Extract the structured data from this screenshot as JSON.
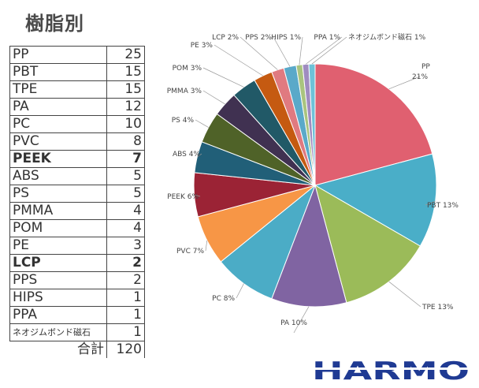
{
  "page": {
    "title": "樹脂別"
  },
  "table": {
    "rows": [
      {
        "name": "PP",
        "value": "25",
        "bold": false
      },
      {
        "name": "PBT",
        "value": "15",
        "bold": false
      },
      {
        "name": "TPE",
        "value": "15",
        "bold": false
      },
      {
        "name": "PA",
        "value": "12",
        "bold": false
      },
      {
        "name": "PC",
        "value": "10",
        "bold": false
      },
      {
        "name": "PVC",
        "value": "8",
        "bold": false
      },
      {
        "name": "PEEK",
        "value": "7",
        "bold": true
      },
      {
        "name": "ABS",
        "value": "5",
        "bold": false
      },
      {
        "name": "PS",
        "value": "5",
        "bold": false
      },
      {
        "name": "PMMA",
        "value": "4",
        "bold": false
      },
      {
        "name": "POM",
        "value": "4",
        "bold": false
      },
      {
        "name": "PE",
        "value": "3",
        "bold": false
      },
      {
        "name": "LCP",
        "value": "2",
        "bold": true
      },
      {
        "name": "PPS",
        "value": "2",
        "bold": false
      },
      {
        "name": "HIPS",
        "value": "1",
        "bold": false
      },
      {
        "name": "PPA",
        "value": "1",
        "bold": false
      },
      {
        "name": "ネオジムボンド磁石",
        "value": "1",
        "bold": false
      }
    ],
    "total_label": "合計",
    "total_value": "120"
  },
  "logo": {
    "text": "HARMO",
    "color": "#1f3a93"
  },
  "chart_data": {
    "type": "pie",
    "slices": [
      {
        "label": "PP",
        "value": 25,
        "pct": "21%",
        "color": "#e06070"
      },
      {
        "label": "PBT",
        "value": 15,
        "pct": "13%",
        "color": "#4aaec8"
      },
      {
        "label": "TPE",
        "value": 15,
        "pct": "13%",
        "color": "#9bbb59"
      },
      {
        "label": "PA",
        "value": 12,
        "pct": "10%",
        "color": "#8064a2"
      },
      {
        "label": "PC",
        "value": 10,
        "pct": "8%",
        "color": "#4bacc6"
      },
      {
        "label": "PVC",
        "value": 8,
        "pct": "7%",
        "color": "#f79646"
      },
      {
        "label": "PEEK",
        "value": 7,
        "pct": "6%",
        "color": "#9b2335"
      },
      {
        "label": "ABS",
        "value": 5,
        "pct": "4%",
        "color": "#215f78"
      },
      {
        "label": "PS",
        "value": 5,
        "pct": "4%",
        "color": "#4f6228"
      },
      {
        "label": "PMMA",
        "value": 4,
        "pct": "3%",
        "color": "#403151"
      },
      {
        "label": "POM",
        "value": 4,
        "pct": "3%",
        "color": "#215967"
      },
      {
        "label": "PE",
        "value": 3,
        "pct": "3%",
        "color": "#c55a11"
      },
      {
        "label": "LCP",
        "value": 2,
        "pct": "2%",
        "color": "#e07a80"
      },
      {
        "label": "PPS",
        "value": 2,
        "pct": "2%",
        "color": "#5aa9c9"
      },
      {
        "label": "HIPS",
        "value": 1,
        "pct": "1%",
        "color": "#a9c47f"
      },
      {
        "label": "PPA",
        "value": 1,
        "pct": "1%",
        "color": "#9f8cc0"
      },
      {
        "label": "ネオジムボンド磁石",
        "value": 1,
        "pct": "1%",
        "color": "#6ec2d8"
      }
    ]
  }
}
